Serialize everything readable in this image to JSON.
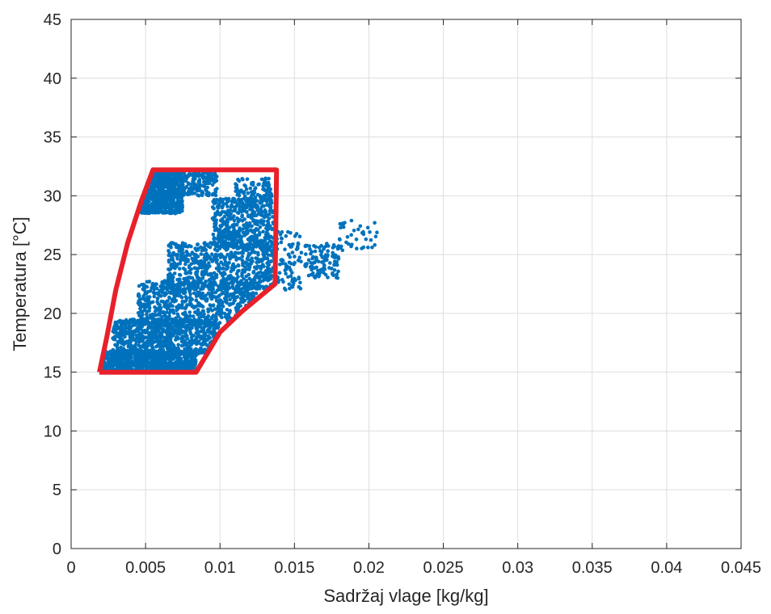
{
  "chart_data": {
    "type": "scatter",
    "xlabel": "Sadržaj vlage [kg/kg]",
    "ylabel": "Temperatura [°C]",
    "xlim": [
      0,
      0.045
    ],
    "ylim": [
      0,
      45
    ],
    "x_ticks": [
      0,
      0.005,
      0.01,
      0.015,
      0.02,
      0.025,
      0.03,
      0.035,
      0.04,
      0.045
    ],
    "x_tick_labels": [
      "0",
      "0.005",
      "0.01",
      "0.015",
      "0.02",
      "0.025",
      "0.03",
      "0.035",
      "0.04",
      "0.045"
    ],
    "y_ticks": [
      0,
      5,
      10,
      15,
      20,
      25,
      30,
      35,
      40,
      45
    ],
    "y_tick_labels": [
      "0",
      "5",
      "10",
      "15",
      "20",
      "25",
      "30",
      "35",
      "40",
      "45"
    ],
    "grid": true,
    "scatter_color": "#0072BD",
    "boundary_color": "#E8202A",
    "boundary_polygon": [
      [
        0.0019,
        15
      ],
      [
        0.0024,
        18
      ],
      [
        0.003,
        22
      ],
      [
        0.0038,
        26
      ],
      [
        0.0047,
        29.5
      ],
      [
        0.0055,
        32.2
      ],
      [
        0.0138,
        32.2
      ],
      [
        0.0137,
        22.5
      ],
      [
        0.0115,
        20.2
      ],
      [
        0.01,
        18.4
      ],
      [
        0.0084,
        15
      ],
      [
        0.0019,
        15
      ]
    ],
    "scatter_clusters": [
      {
        "x": [
          0.002,
          0.0084
        ],
        "y": [
          15,
          16.8
        ],
        "density": 900
      },
      {
        "x": [
          0.0028,
          0.01
        ],
        "y": [
          16.5,
          19.5
        ],
        "density": 700
      },
      {
        "x": [
          0.0045,
          0.0125
        ],
        "y": [
          19,
          22.8
        ],
        "density": 650
      },
      {
        "x": [
          0.0065,
          0.0137
        ],
        "y": [
          22,
          26
        ],
        "density": 650
      },
      {
        "x": [
          0.0095,
          0.0136
        ],
        "y": [
          25.5,
          29.8
        ],
        "density": 450
      },
      {
        "x": [
          0.011,
          0.0135
        ],
        "y": [
          29,
          31.5
        ],
        "density": 130
      },
      {
        "x": [
          0.0044,
          0.0075
        ],
        "y": [
          28.5,
          32.0
        ],
        "density": 650
      },
      {
        "x": [
          0.0068,
          0.0098
        ],
        "y": [
          30,
          32.0
        ],
        "density": 200
      },
      {
        "x": [
          0.0138,
          0.0155
        ],
        "y": [
          22,
          27
        ],
        "density": 80
      },
      {
        "x": [
          0.0157,
          0.018
        ],
        "y": [
          23,
          26
        ],
        "density": 120
      },
      {
        "x": [
          0.018,
          0.0206
        ],
        "y": [
          25.3,
          28
        ],
        "density": 40
      }
    ]
  }
}
